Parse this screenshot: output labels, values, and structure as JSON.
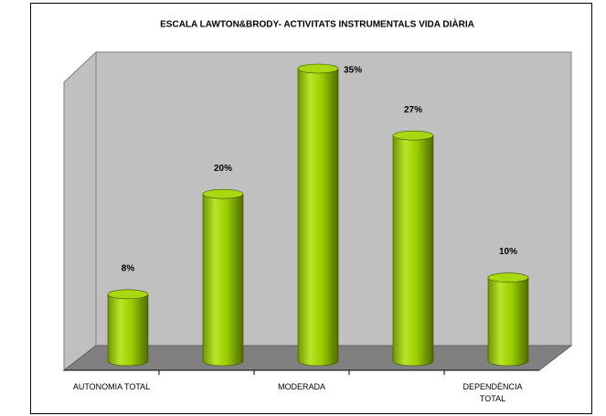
{
  "chart_data": {
    "type": "bar3d",
    "title": "ESCALA LAWTON&BRODY- ACTIVITATS INSTRUMENTALS VIDA DIÀRIA",
    "categories": [
      "AUTONOMIA TOTAL",
      null,
      "MODERADA",
      null,
      "DEPENDÈNCIA TOTAL"
    ],
    "values": [
      8,
      20,
      35,
      27,
      10
    ],
    "value_labels": [
      "8%",
      "20%",
      "35%",
      "27%",
      "10%"
    ],
    "color": "#99cc00"
  }
}
